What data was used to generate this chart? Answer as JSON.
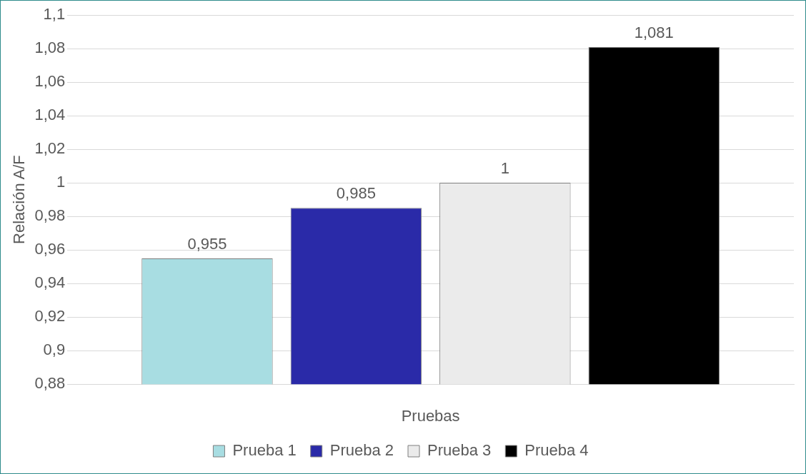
{
  "chart_data": {
    "type": "bar",
    "xlabel": "Pruebas",
    "ylabel": "Relación A/F",
    "categories": [
      null
    ],
    "series": [
      {
        "name": "Prueba 1",
        "color": "#a8dde2",
        "values": [
          0.955
        ],
        "value_labels": [
          "0,955"
        ]
      },
      {
        "name": "Prueba 2",
        "color": "#2a2aa8",
        "values": [
          0.985
        ],
        "value_labels": [
          "0,985"
        ]
      },
      {
        "name": "Prueba 3",
        "color": "#ebebeb",
        "values": [
          1
        ],
        "value_labels": [
          "1"
        ]
      },
      {
        "name": "Prueba 4",
        "color": "#000000",
        "values": [
          1.081
        ],
        "value_labels": [
          "1,081"
        ]
      }
    ],
    "ylim": [
      0.88,
      1.1
    ],
    "yticks": [
      {
        "value": 0.88,
        "label": "0,88"
      },
      {
        "value": 0.9,
        "label": "0,9"
      },
      {
        "value": 0.92,
        "label": "0,92"
      },
      {
        "value": 0.94,
        "label": "0,94"
      },
      {
        "value": 0.96,
        "label": "0,96"
      },
      {
        "value": 0.98,
        "label": "0,98"
      },
      1,
      {
        "value": 1.02,
        "label": "1,02"
      },
      {
        "value": 1.04,
        "label": "1,04"
      },
      {
        "value": 1.06,
        "label": "1,06"
      },
      {
        "value": 1.08,
        "label": "1,08"
      },
      {
        "value": 1.1,
        "label": "1,1"
      }
    ],
    "grid": "y",
    "legend": "bottom"
  }
}
